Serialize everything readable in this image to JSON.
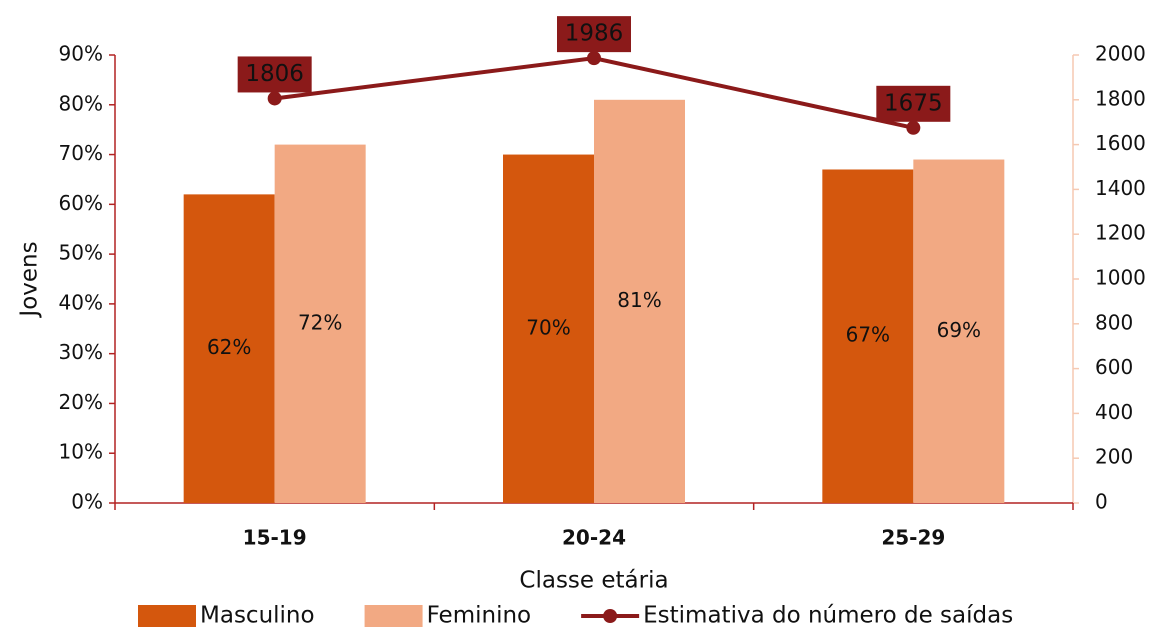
{
  "chart_data": {
    "type": "bar",
    "categories": [
      "15-19",
      "20-24",
      "25-29"
    ],
    "x_label": "Classe etária",
    "y_label": "Jovens",
    "series": [
      {
        "name": "Masculino",
        "color": "#d4570d",
        "values": [
          62,
          70,
          67
        ],
        "value_labels": [
          "62%",
          "70%",
          "67%"
        ]
      },
      {
        "name": "Feminino",
        "color": "#f2a983",
        "values": [
          72,
          81,
          69
        ],
        "value_labels": [
          "72%",
          "81%",
          "69%"
        ]
      },
      {
        "name": "Estimativa do número de saídas",
        "type": "line",
        "axis": "y2",
        "color": "#8b1a1a",
        "values": [
          1806,
          1986,
          1675
        ]
      }
    ],
    "ylim": [
      0,
      90
    ],
    "yticks": [
      {
        "value": 0,
        "label": "0%"
      },
      {
        "value": 10,
        "label": "10%"
      },
      {
        "value": 20,
        "label": "20%"
      },
      {
        "value": 30,
        "label": "30%"
      },
      {
        "value": 40,
        "label": "40%"
      },
      {
        "value": 50,
        "label": "50%"
      },
      {
        "value": 60,
        "label": "60%"
      },
      {
        "value": 70,
        "label": "70%"
      },
      {
        "value": 80,
        "label": "80%"
      },
      {
        "value": 90,
        "label": "90%"
      }
    ],
    "y2lim": [
      0,
      2000
    ],
    "y2ticks": [
      0,
      200,
      400,
      600,
      800,
      1000,
      1200,
      1400,
      1600,
      1800,
      2000
    ],
    "legend": "bottom"
  }
}
